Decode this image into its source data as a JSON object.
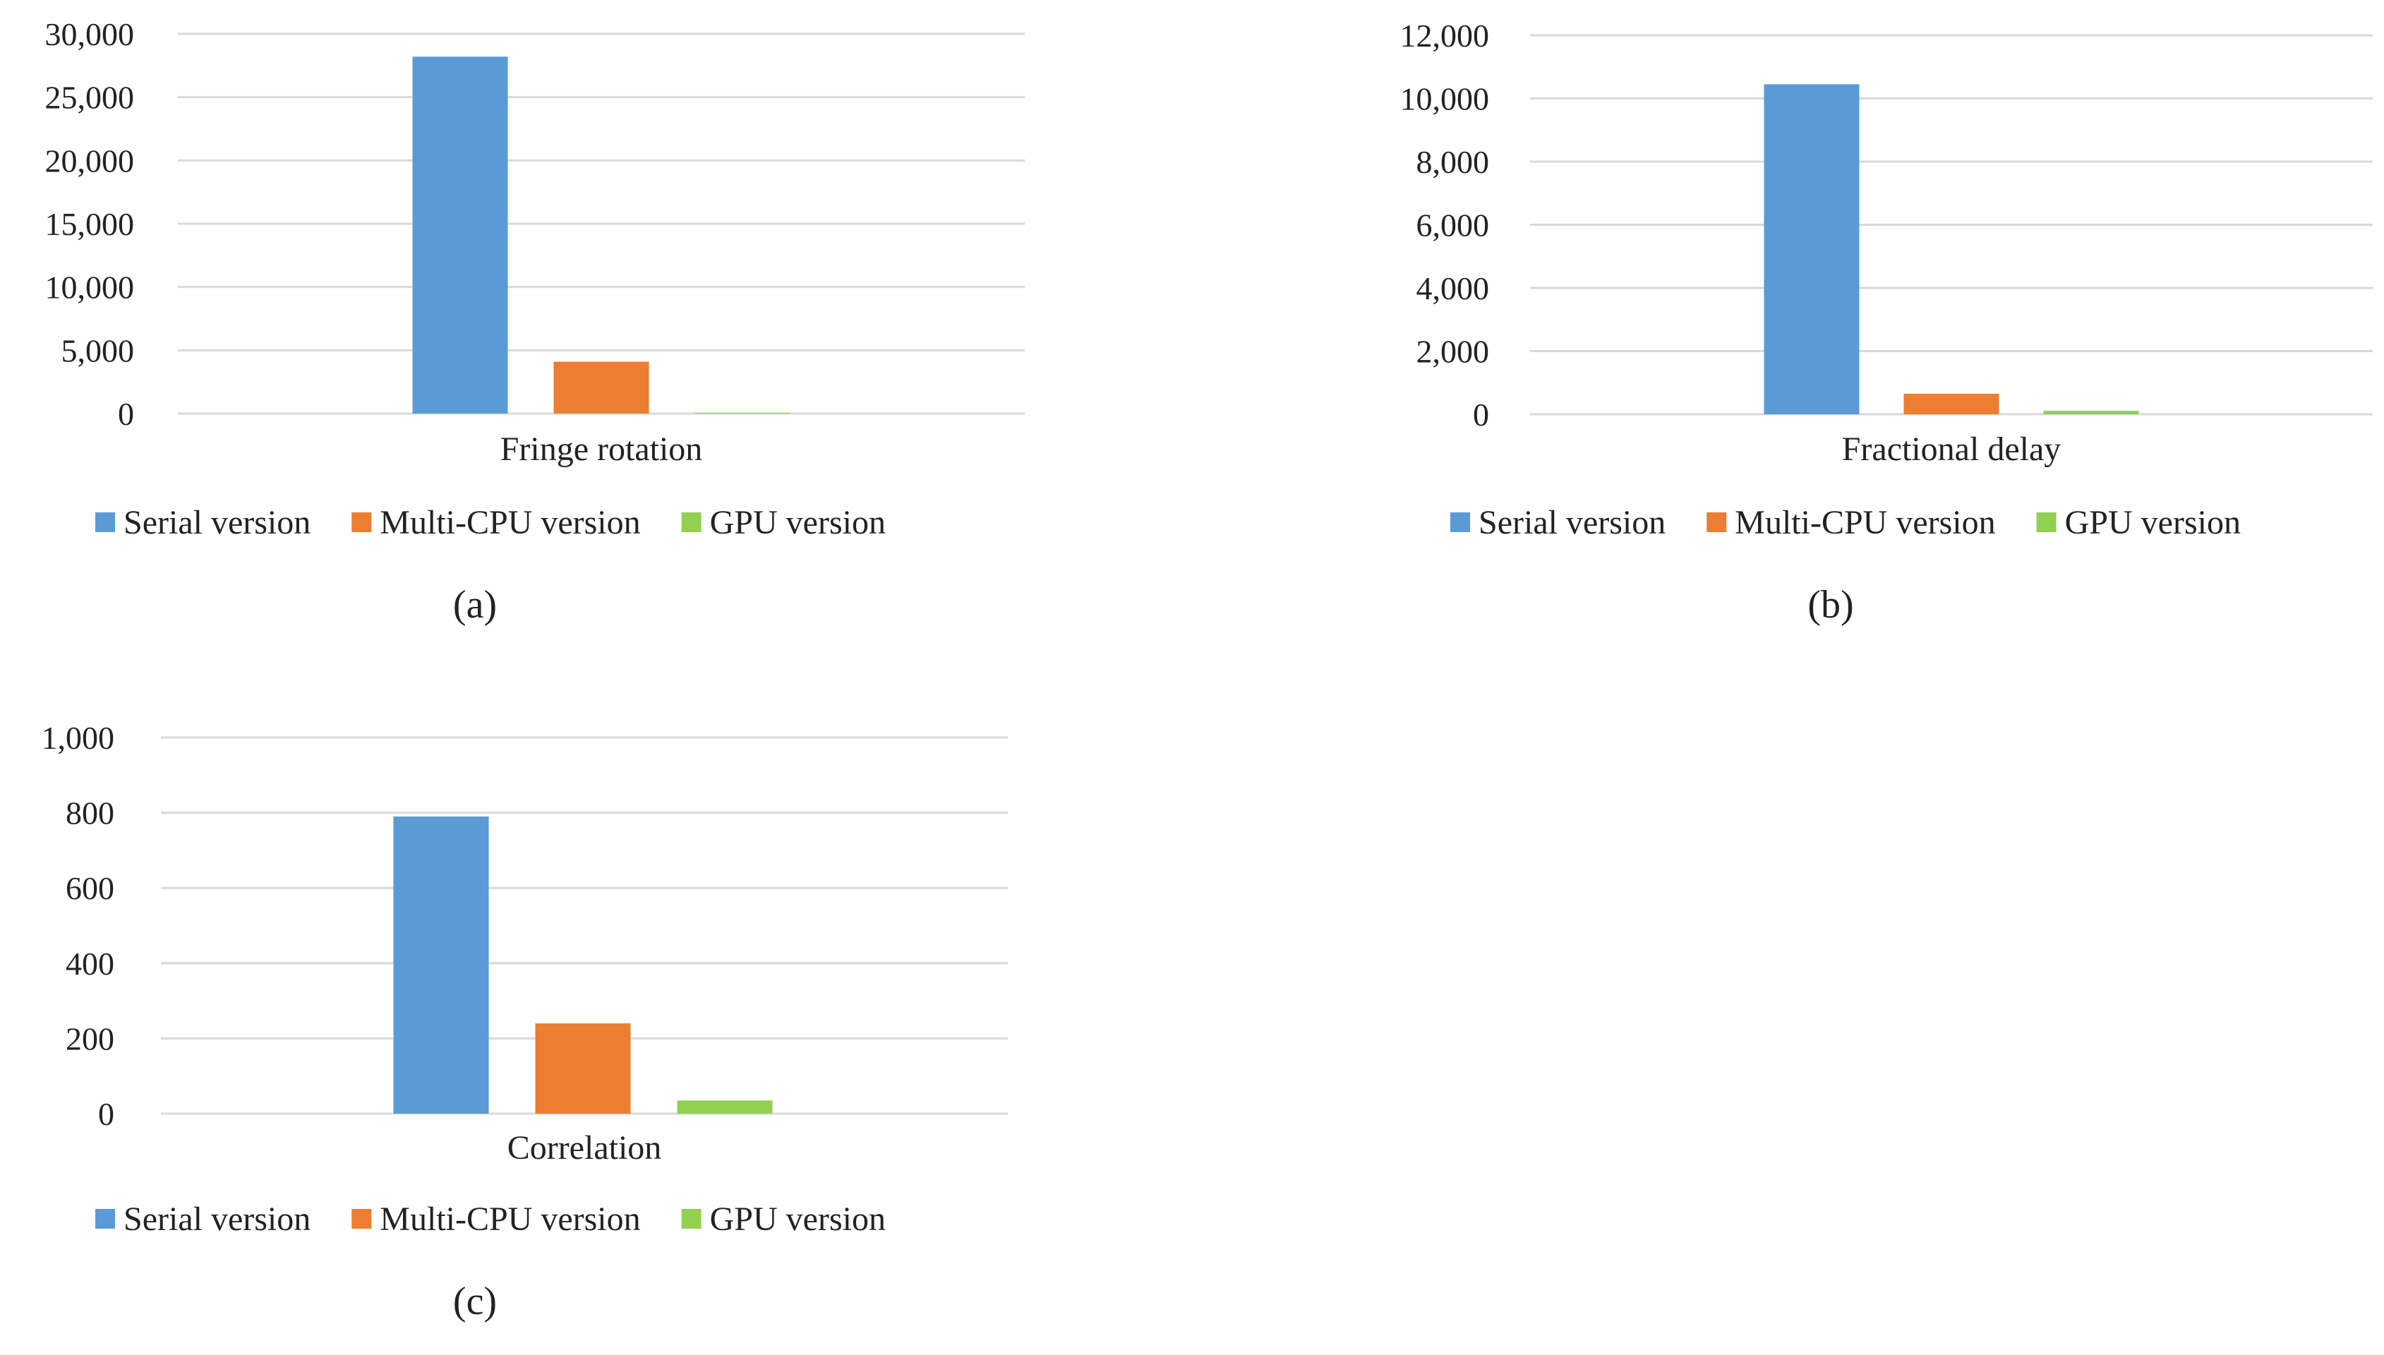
{
  "chart_data": [
    {
      "type": "bar",
      "panel": "(a)",
      "categories": [
        "Fringe rotation"
      ],
      "series": [
        {
          "name": "Serial version",
          "values": [
            28200
          ],
          "color": "#5b9bd5"
        },
        {
          "name": "Multi-CPU version",
          "values": [
            4100
          ],
          "color": "#ed7d31"
        },
        {
          "name": "GPU version",
          "values": [
            60
          ],
          "color": "#92d050"
        }
      ],
      "title": "",
      "xlabel": "",
      "ylabel": "",
      "ylim": [
        0,
        30000
      ],
      "yticks": [
        "0",
        "5,000",
        "10,000",
        "15,000",
        "20,000",
        "25,000",
        "30,000"
      ],
      "grid": true,
      "legend": "bottom",
      "caption": "(a)"
    },
    {
      "type": "bar",
      "panel": "(b)",
      "categories": [
        "Fractional delay"
      ],
      "series": [
        {
          "name": "Serial version",
          "values": [
            10450
          ],
          "color": "#5b9bd5"
        },
        {
          "name": "Multi-CPU version",
          "values": [
            650
          ],
          "color": "#ed7d31"
        },
        {
          "name": "GPU version",
          "values": [
            110
          ],
          "color": "#92d050"
        }
      ],
      "title": "",
      "xlabel": "",
      "ylabel": "",
      "ylim": [
        0,
        12000
      ],
      "yticks": [
        "0",
        "2,000",
        "4,000",
        "6,000",
        "8,000",
        "10,000",
        "12,000"
      ],
      "grid": true,
      "legend": "bottom",
      "caption": "(b)"
    },
    {
      "type": "bar",
      "panel": "(c)",
      "categories": [
        "Correlation"
      ],
      "series": [
        {
          "name": "Serial version",
          "values": [
            790
          ],
          "color": "#5b9bd5"
        },
        {
          "name": "Multi-CPU version",
          "values": [
            240
          ],
          "color": "#ed7d31"
        },
        {
          "name": "GPU version",
          "values": [
            35
          ],
          "color": "#92d050"
        }
      ],
      "title": "",
      "xlabel": "",
      "ylabel": "",
      "ylim": [
        0,
        1000
      ],
      "yticks": [
        "0",
        "200",
        "400",
        "600",
        "800",
        "1,000"
      ],
      "grid": true,
      "legend": "bottom",
      "caption": "(c)"
    }
  ]
}
